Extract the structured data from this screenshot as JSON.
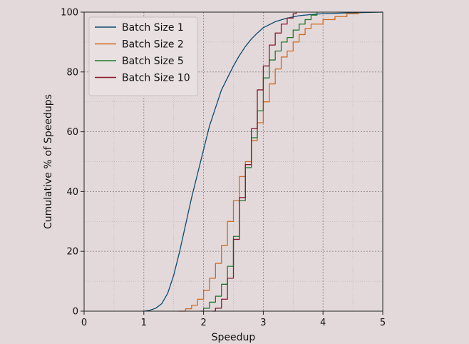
{
  "chart_data": {
    "type": "line",
    "xlabel": "Speedup",
    "ylabel": "Cumulative % of Speedups",
    "xlim": [
      0,
      5
    ],
    "ylim": [
      0,
      100
    ],
    "xticks": [
      0,
      1,
      2,
      3,
      4,
      5
    ],
    "yticks": [
      0,
      20,
      40,
      60,
      80,
      100
    ],
    "grid": true,
    "legend_position": "top-left",
    "series": [
      {
        "name": "Batch Size 1",
        "color": "#0b4a6f",
        "step": false,
        "points": [
          [
            1.0,
            0
          ],
          [
            1.1,
            0.3
          ],
          [
            1.2,
            1
          ],
          [
            1.3,
            2.5
          ],
          [
            1.4,
            6
          ],
          [
            1.5,
            12
          ],
          [
            1.6,
            20
          ],
          [
            1.7,
            29
          ],
          [
            1.8,
            38
          ],
          [
            1.9,
            46
          ],
          [
            2.0,
            54
          ],
          [
            2.1,
            62
          ],
          [
            2.2,
            68
          ],
          [
            2.3,
            74
          ],
          [
            2.4,
            78
          ],
          [
            2.5,
            82
          ],
          [
            2.6,
            85.5
          ],
          [
            2.7,
            88.5
          ],
          [
            2.8,
            91
          ],
          [
            2.9,
            93
          ],
          [
            3.0,
            94.8
          ],
          [
            3.2,
            96.8
          ],
          [
            3.4,
            98
          ],
          [
            3.6,
            98.8
          ],
          [
            3.8,
            99.2
          ],
          [
            4.0,
            99.5
          ],
          [
            4.5,
            99.8
          ],
          [
            5.0,
            100
          ]
        ]
      },
      {
        "name": "Batch Size 2",
        "color": "#d2691e",
        "step": true,
        "points": [
          [
            1.58,
            0
          ],
          [
            1.7,
            0.8
          ],
          [
            1.8,
            2
          ],
          [
            1.9,
            4
          ],
          [
            2.0,
            7
          ],
          [
            2.1,
            11
          ],
          [
            2.2,
            16
          ],
          [
            2.3,
            22
          ],
          [
            2.4,
            30
          ],
          [
            2.5,
            37
          ],
          [
            2.6,
            45
          ],
          [
            2.7,
            50
          ],
          [
            2.8,
            57
          ],
          [
            2.9,
            63
          ],
          [
            3.0,
            70
          ],
          [
            3.1,
            76
          ],
          [
            3.2,
            81
          ],
          [
            3.3,
            85
          ],
          [
            3.4,
            87
          ],
          [
            3.5,
            90
          ],
          [
            3.6,
            92.5
          ],
          [
            3.7,
            94.5
          ],
          [
            3.8,
            96
          ],
          [
            4.0,
            97.5
          ],
          [
            4.2,
            98.5
          ],
          [
            4.4,
            99.5
          ],
          [
            4.6,
            100
          ]
        ]
      },
      {
        "name": "Batch Size 5",
        "color": "#1f7a2e",
        "step": true,
        "points": [
          [
            1.95,
            0
          ],
          [
            2.0,
            1
          ],
          [
            2.1,
            3
          ],
          [
            2.2,
            5
          ],
          [
            2.3,
            9
          ],
          [
            2.4,
            15
          ],
          [
            2.5,
            25
          ],
          [
            2.6,
            37
          ],
          [
            2.7,
            48
          ],
          [
            2.8,
            58
          ],
          [
            2.9,
            67
          ],
          [
            3.0,
            78
          ],
          [
            3.1,
            84
          ],
          [
            3.2,
            87
          ],
          [
            3.3,
            90
          ],
          [
            3.4,
            91.5
          ],
          [
            3.5,
            94
          ],
          [
            3.6,
            96
          ],
          [
            3.7,
            97.5
          ],
          [
            3.8,
            99
          ],
          [
            3.9,
            100
          ]
        ]
      },
      {
        "name": "Batch Size 10",
        "color": "#8b1a2b",
        "step": true,
        "points": [
          [
            2.15,
            0
          ],
          [
            2.2,
            1
          ],
          [
            2.3,
            4
          ],
          [
            2.4,
            11
          ],
          [
            2.5,
            24
          ],
          [
            2.6,
            38
          ],
          [
            2.7,
            49
          ],
          [
            2.8,
            61
          ],
          [
            2.9,
            74
          ],
          [
            3.0,
            82
          ],
          [
            3.1,
            89
          ],
          [
            3.2,
            93
          ],
          [
            3.3,
            96
          ],
          [
            3.4,
            98
          ],
          [
            3.5,
            99.5
          ],
          [
            3.55,
            100
          ]
        ]
      }
    ]
  }
}
